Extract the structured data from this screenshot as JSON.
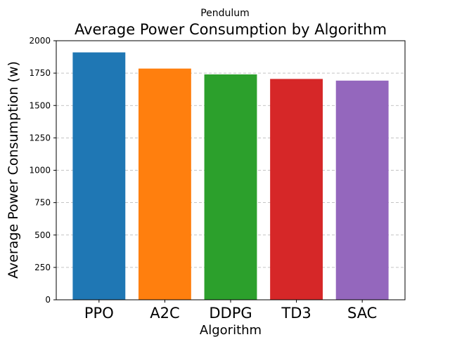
{
  "chart_data": {
    "type": "bar",
    "suptitle": "Pendulum",
    "title": "Average Power Consumption by Algorithm",
    "xlabel": "Algorithm",
    "ylabel": "Average Power Consumption (w)",
    "categories": [
      "PPO",
      "A2C",
      "DDPG",
      "TD3",
      "SAC"
    ],
    "values": [
      1910,
      1785,
      1740,
      1705,
      1692
    ],
    "colors": [
      "#1f77b4",
      "#ff7f0e",
      "#2ca02c",
      "#d62728",
      "#9467bd"
    ],
    "ylim": [
      0,
      2000
    ],
    "yticks": [
      0,
      250,
      500,
      750,
      1000,
      1250,
      1500,
      1750,
      2000
    ],
    "grid": "y-dashed",
    "legend": "none"
  }
}
